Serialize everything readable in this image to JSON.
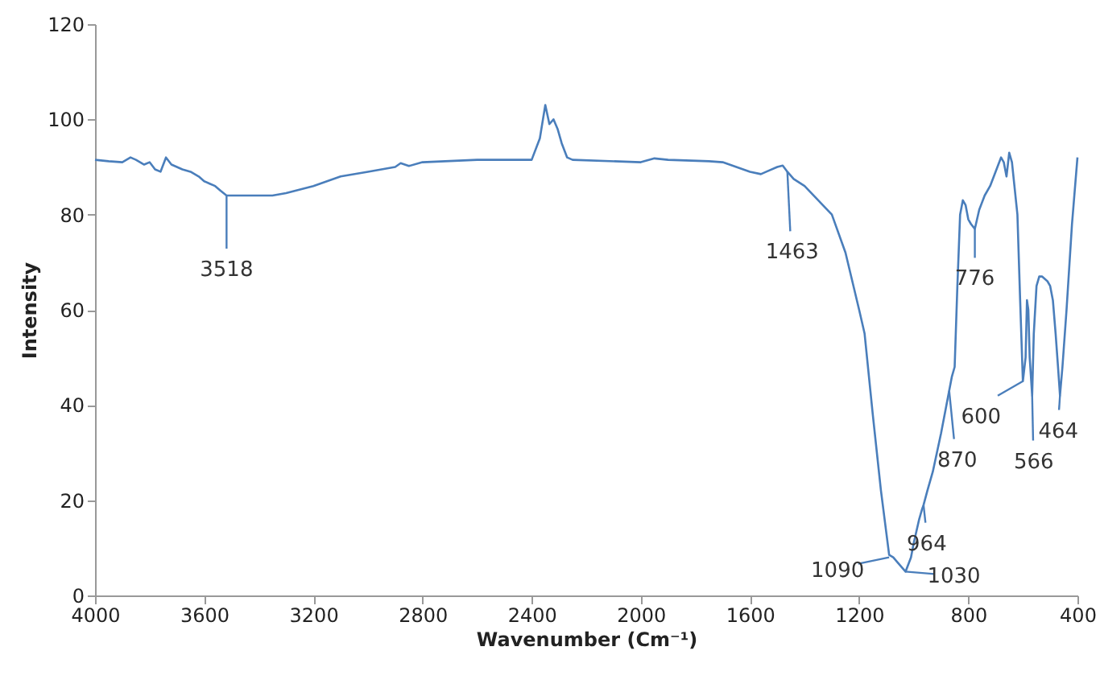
{
  "chart_data": {
    "type": "line",
    "xlabel": "Wavenumber (Cm⁻¹)",
    "ylabel": "Intensity",
    "xlim": [
      4000,
      400
    ],
    "xticks": [
      4000,
      3600,
      3200,
      2800,
      2400,
      2000,
      1600,
      1200,
      800,
      400
    ],
    "ylim": [
      0,
      120
    ],
    "yticks": [
      0,
      20,
      40,
      60,
      80,
      100,
      120
    ],
    "grid": false,
    "marker": "none",
    "line_style": "solid",
    "series": [
      {
        "color": "#4a7ebb",
        "x": [
          4000,
          3950,
          3900,
          3870,
          3850,
          3820,
          3800,
          3780,
          3760,
          3740,
          3720,
          3700,
          3680,
          3650,
          3620,
          3600,
          3580,
          3560,
          3540,
          3518,
          3450,
          3350,
          3300,
          3200,
          3100,
          3000,
          2900,
          2880,
          2850,
          2800,
          2600,
          2400,
          2370,
          2350,
          2335,
          2320,
          2305,
          2290,
          2270,
          2250,
          2000,
          1950,
          1900,
          1750,
          1700,
          1650,
          1600,
          1560,
          1540,
          1500,
          1480,
          1463,
          1440,
          1400,
          1350,
          1300,
          1250,
          1200,
          1180,
          1150,
          1120,
          1100,
          1090,
          1075,
          1060,
          1030,
          1010,
          1000,
          980,
          970,
          964,
          950,
          930,
          900,
          880,
          870,
          860,
          850,
          840,
          830,
          820,
          810,
          800,
          790,
          776,
          760,
          740,
          720,
          700,
          680,
          670,
          660,
          650,
          640,
          620,
          610,
          600,
          590,
          585,
          580,
          575,
          566,
          560,
          550,
          540,
          530,
          510,
          500,
          490,
          480,
          470,
          464,
          455,
          440,
          420,
          400
        ],
        "values": [
          91.5,
          91.2,
          91,
          92,
          91.5,
          90.5,
          91,
          89.5,
          89,
          92,
          90.5,
          90,
          89.5,
          89,
          88,
          87,
          86.5,
          86,
          85,
          84,
          84,
          84,
          84.5,
          86,
          88,
          89,
          90,
          90.8,
          90.2,
          91,
          91.5,
          91.5,
          96,
          103,
          99,
          100,
          98,
          95,
          92,
          91.5,
          91,
          91.8,
          91.5,
          91.2,
          91,
          90,
          89,
          88.5,
          89,
          90,
          90.3,
          89,
          87.5,
          86,
          83,
          80,
          72,
          60,
          55,
          38,
          22,
          13,
          8.5,
          8,
          7,
          5,
          8,
          11,
          16,
          18,
          19,
          22,
          26,
          34,
          40,
          43,
          46,
          48,
          65,
          80,
          83,
          82,
          79,
          78,
          77,
          81,
          84,
          86,
          89,
          92,
          91,
          88,
          93,
          91,
          80,
          62,
          45,
          50,
          62,
          60,
          50,
          42,
          55,
          65,
          67,
          67,
          66,
          65,
          62,
          55,
          47,
          42,
          48,
          60,
          78,
          92
        ]
      }
    ],
    "annotations": [
      {
        "text": "3518",
        "x": 3518,
        "y": 84
      },
      {
        "text": "1463",
        "x": 1463,
        "y": 89
      },
      {
        "text": "776",
        "x": 776,
        "y": 77
      },
      {
        "text": "870",
        "x": 870,
        "y": 43
      },
      {
        "text": "600",
        "x": 600,
        "y": 45
      },
      {
        "text": "566",
        "x": 566,
        "y": 42
      },
      {
        "text": "464",
        "x": 464,
        "y": 42
      },
      {
        "text": "964",
        "x": 964,
        "y": 19
      },
      {
        "text": "1030",
        "x": 1030,
        "y": 5
      },
      {
        "text": "1090",
        "x": 1090,
        "y": 8
      }
    ]
  }
}
